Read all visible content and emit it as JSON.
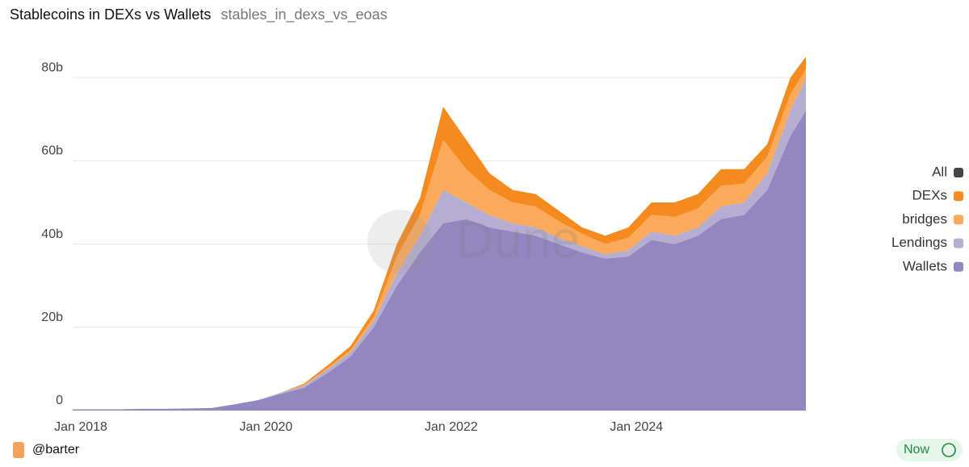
{
  "chart_data": {
    "type": "stacked-area",
    "title": "Stablecoins in DEXs vs Wallets",
    "subtitle": "stables_in_dexs_vs_eoas",
    "watermark": "Dune",
    "author": "@barter",
    "timestamp": "Now",
    "x": [
      "2018-01",
      "2018-04",
      "2018-07",
      "2018-10",
      "2019-01",
      "2019-04",
      "2019-07",
      "2019-10",
      "2020-01",
      "2020-04",
      "2020-07",
      "2020-10",
      "2021-01",
      "2021-04",
      "2021-07",
      "2021-10",
      "2022-01",
      "2022-04",
      "2022-07",
      "2022-10",
      "2023-01",
      "2023-04",
      "2023-07",
      "2023-10",
      "2024-01",
      "2024-04",
      "2024-07",
      "2024-10",
      "2025-01",
      "2025-04",
      "2025-07",
      "2025-10",
      "2025-12"
    ],
    "xlim": [
      "2018-01",
      "2025-12"
    ],
    "xticks": [
      {
        "value": "2018-01",
        "label": "Jan 2018"
      },
      {
        "value": "2020-01",
        "label": "Jan 2020"
      },
      {
        "value": "2022-01",
        "label": "Jan 2022"
      },
      {
        "value": "2024-01",
        "label": "Jan 2024"
      }
    ],
    "ylim": [
      0,
      87
    ],
    "yticks": [
      0,
      {
        "value": 20,
        "label": "20b"
      },
      {
        "value": 40,
        "label": "40b"
      },
      {
        "value": 60,
        "label": "60b"
      },
      {
        "value": 80,
        "label": "80b"
      }
    ],
    "grid": true,
    "legend": "right",
    "series": [
      {
        "name": "All",
        "color": "#444444",
        "values": [
          null,
          null,
          null,
          null,
          null,
          null,
          null,
          null,
          null,
          null,
          null,
          null,
          null,
          null,
          null,
          null,
          null,
          null,
          null,
          null,
          null,
          null,
          null,
          null,
          null,
          null,
          null,
          null,
          null,
          null,
          null,
          null,
          null
        ]
      },
      {
        "name": "DEXs",
        "color": "#f58a1f",
        "values": [
          0,
          0,
          0,
          0,
          0,
          0,
          0,
          0,
          0,
          0,
          0.3,
          0.6,
          1,
          1.5,
          3,
          4,
          8,
          7,
          4,
          3,
          3,
          2.5,
          1.5,
          2,
          2.5,
          3,
          3.5,
          3.5,
          4,
          3.5,
          3,
          4,
          3
        ]
      },
      {
        "name": "bridges",
        "color": "#fba95a",
        "values": [
          0,
          0,
          0,
          0,
          0,
          0,
          0,
          0,
          0,
          0,
          0.2,
          0.4,
          0.5,
          1,
          4,
          5,
          12,
          8,
          6,
          5,
          5,
          4,
          3,
          2.5,
          3,
          4,
          4.5,
          4.5,
          5,
          4.5,
          4,
          4,
          2
        ]
      },
      {
        "name": "Lendings",
        "color": "#b5aed1",
        "values": [
          0,
          0,
          0,
          0,
          0,
          0,
          0,
          0,
          0,
          0.3,
          0.5,
          0.8,
          1,
          1.5,
          3,
          4,
          8,
          4,
          3,
          2,
          2,
          1.5,
          1.5,
          1,
          1.5,
          2,
          2,
          2,
          3,
          3,
          4,
          6,
          8
        ]
      },
      {
        "name": "Wallets",
        "color": "#9387c2",
        "values": [
          0.3,
          0.3,
          0.3,
          0.4,
          0.4,
          0.5,
          0.6,
          1.5,
          2.5,
          4,
          5.5,
          9,
          13,
          20,
          30,
          38,
          45,
          46,
          44,
          43,
          42,
          40,
          38,
          36.5,
          37,
          41,
          40,
          42,
          46,
          47,
          53,
          66,
          72
        ]
      }
    ]
  }
}
